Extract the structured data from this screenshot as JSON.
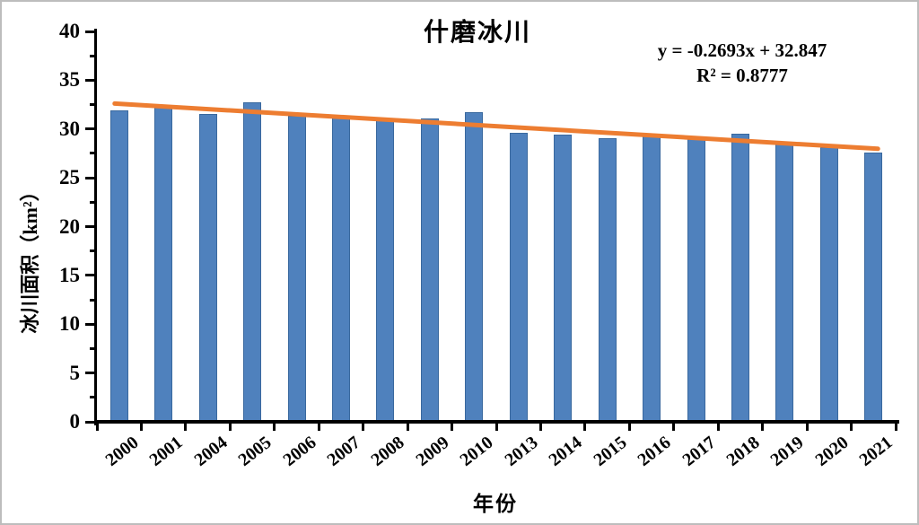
{
  "chart_data": {
    "type": "bar",
    "title": "什磨冰川",
    "xlabel": "年份",
    "ylabel": "冰川面积（km²）",
    "categories": [
      "2000",
      "2001",
      "2004",
      "2005",
      "2006",
      "2007",
      "2008",
      "2009",
      "2010",
      "2013",
      "2014",
      "2015",
      "2016",
      "2017",
      "2018",
      "2019",
      "2020",
      "2021"
    ],
    "values": [
      31.9,
      32.3,
      31.5,
      32.7,
      31.4,
      31.2,
      30.9,
      31.1,
      31.7,
      29.6,
      29.4,
      29.1,
      29.3,
      29.0,
      29.5,
      28.6,
      28.1,
      27.6
    ],
    "ylim": [
      0,
      40
    ],
    "ytick_step": 5,
    "y_minor_step": 2.5,
    "grid": false,
    "legend": "none",
    "bar_color": "#4F81BD",
    "bar_border_color": "#39689E",
    "axis_color": "#000000",
    "trendline": {
      "type": "linear",
      "slope": -0.2693,
      "intercept": 32.847,
      "equation": "y = -0.2693x + 32.847",
      "r2_label": "R² = 0.8777",
      "color": "#ED7D31"
    }
  }
}
